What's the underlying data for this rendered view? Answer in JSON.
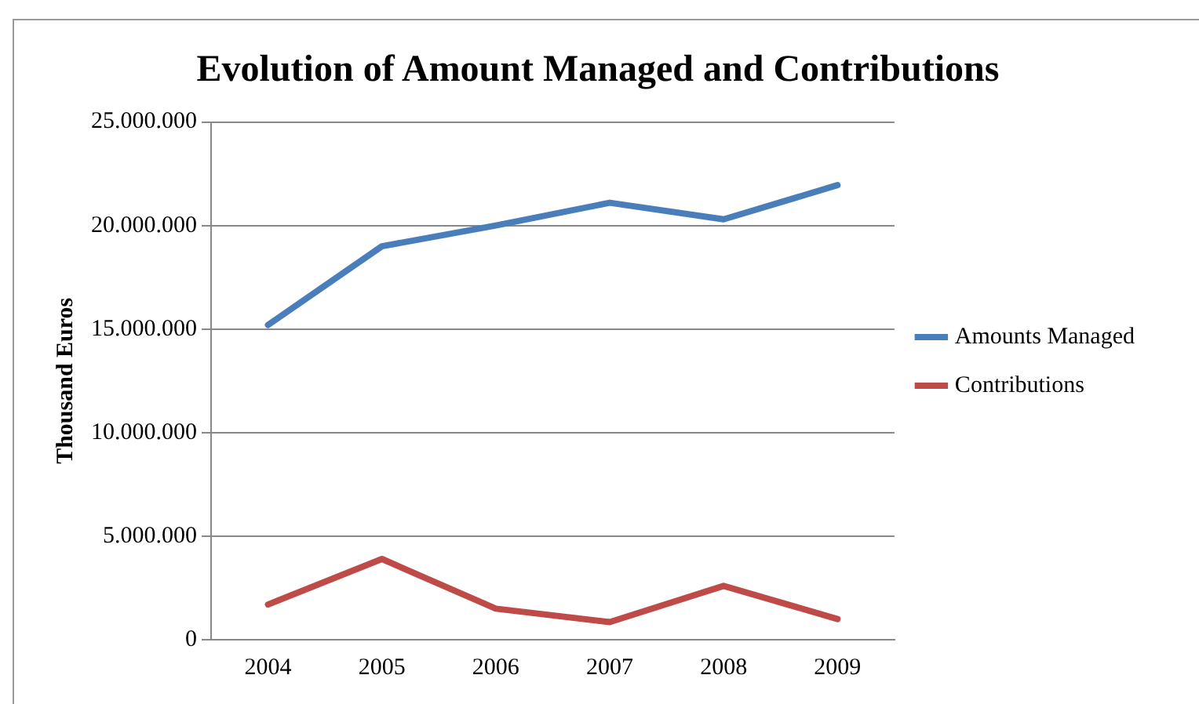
{
  "chart_data": {
    "type": "line",
    "title": "Evolution of Amount Managed and Contributions",
    "ylabel": "Thousand Euros",
    "categories": [
      "2004",
      "2005",
      "2006",
      "2007",
      "2008",
      "2009"
    ],
    "series": [
      {
        "name": "Amounts Managed",
        "color": "#4a7ebb",
        "values": [
          15200000,
          19000000,
          20000000,
          21100000,
          20300000,
          21950000
        ]
      },
      {
        "name": "Contributions",
        "color": "#be4b48",
        "values": [
          1700000,
          3900000,
          1500000,
          850000,
          2600000,
          1000000
        ]
      }
    ],
    "ylim": [
      0,
      25000000
    ],
    "yticks": [
      {
        "value": 0,
        "label": "0"
      },
      {
        "value": 5000000,
        "label": "5.000.000"
      },
      {
        "value": 10000000,
        "label": "10.000.000"
      },
      {
        "value": 15000000,
        "label": "15.000.000"
      },
      {
        "value": 20000000,
        "label": "20.000.000"
      },
      {
        "value": 25000000,
        "label": "25.000.000"
      }
    ],
    "grid": "y",
    "legend": "right",
    "marker": "none",
    "line_style": "solid"
  }
}
